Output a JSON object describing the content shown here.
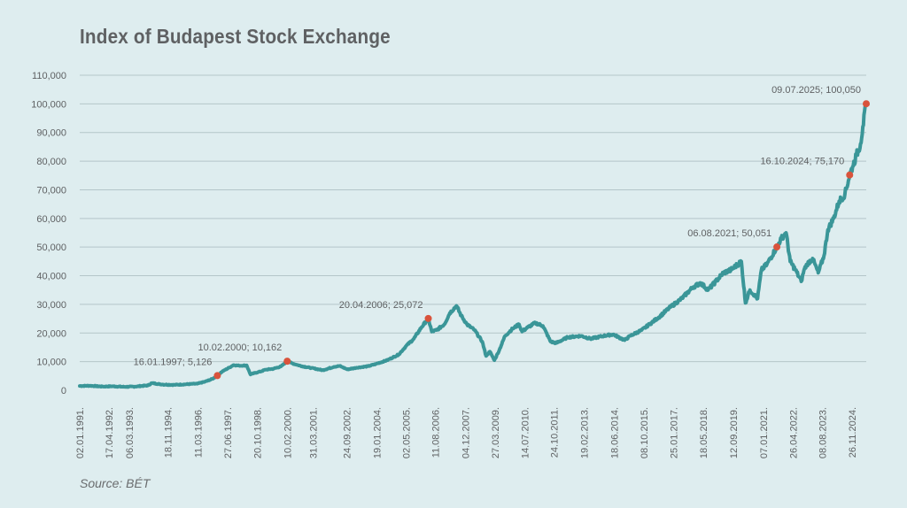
{
  "chart_data": {
    "type": "line",
    "title": "Index of Budapest Stock Exchange",
    "xlabel": "",
    "ylabel": "",
    "source": "Source: BÉT",
    "ylim": [
      0,
      110000
    ],
    "yticks": [
      0,
      10000,
      20000,
      30000,
      40000,
      50000,
      60000,
      70000,
      80000,
      90000,
      100000,
      110000
    ],
    "ytick_labels": [
      "0",
      "10,000",
      "20,000",
      "30,000",
      "40,000",
      "50,000",
      "60,000",
      "70,000",
      "80,000",
      "90,000",
      "100,000",
      "110,000"
    ],
    "xlim": [
      "1991-01-02",
      "2025-07-09"
    ],
    "xtick_dates": [
      "1991-01-02",
      "1992-04-17",
      "1993-03-06",
      "1994-11-18",
      "1996-03-11",
      "1997-06-27",
      "1998-10-20",
      "2000-02-10",
      "2001-03-31",
      "2002-09-24",
      "2004-01-19",
      "2005-05-02",
      "2006-08-11",
      "2007-12-04",
      "2009-03-27",
      "2010-07-14",
      "2011-10-24",
      "2013-02-19",
      "2014-06-18",
      "2015-10-08",
      "2017-01-25",
      "2018-05-18",
      "2019-09-12",
      "2021-01-07",
      "2022-04-26",
      "2023-08-08",
      "2024-11-26"
    ],
    "xtick_labels": [
      "02.01.1991.",
      "17.04.1992.",
      "06.03.1993.",
      "18.11.1994.",
      "11.03.1996.",
      "27.06.1997.",
      "20.10.1998.",
      "10.02.2000.",
      "31.03.2001.",
      "24.09.2002.",
      "19.01.2004.",
      "02.05.2005.",
      "11.08.2006.",
      "04.12.2007.",
      "27.03.2009.",
      "14.07.2010.",
      "24.10.2011.",
      "19.02.2013.",
      "18.06.2014.",
      "08.10.2015.",
      "25.01.2017.",
      "18.05.2018.",
      "12.09.2019.",
      "07.01.2021.",
      "26.04.2022.",
      "08.08.2023.",
      "26.11.2024."
    ],
    "grid": true,
    "series": [
      {
        "name": "",
        "color": "#3a9698",
        "x": [
          "1991-01-02",
          "1991-06-01",
          "1992-01-01",
          "1992-06-01",
          "1993-01-01",
          "1993-06-01",
          "1994-01-01",
          "1994-03-01",
          "1994-09-01",
          "1995-03-01",
          "1995-09-01",
          "1996-03-01",
          "1996-07-01",
          "1996-11-01",
          "1997-01-16",
          "1997-04-01",
          "1997-08-01",
          "1997-10-01",
          "1998-01-01",
          "1998-05-01",
          "1998-07-01",
          "1998-09-01",
          "1998-12-01",
          "1999-03-01",
          "1999-07-01",
          "1999-11-01",
          "2000-02-10",
          "2000-05-01",
          "2000-10-01",
          "2001-03-01",
          "2001-09-01",
          "2002-03-01",
          "2002-06-01",
          "2002-10-01",
          "2003-03-01",
          "2003-09-01",
          "2004-01-01",
          "2004-07-01",
          "2005-01-01",
          "2005-05-01",
          "2005-09-01",
          "2006-01-01",
          "2006-04-20",
          "2006-06-15",
          "2006-09-01",
          "2007-01-01",
          "2007-04-01",
          "2007-07-15",
          "2007-10-01",
          "2008-01-01",
          "2008-05-01",
          "2008-09-01",
          "2008-11-01",
          "2009-01-01",
          "2009-03-15",
          "2009-06-01",
          "2009-09-01",
          "2010-01-01",
          "2010-04-15",
          "2010-06-01",
          "2010-09-01",
          "2011-01-01",
          "2011-05-01",
          "2011-09-01",
          "2011-12-01",
          "2012-06-01",
          "2013-01-01",
          "2013-06-01",
          "2014-01-01",
          "2014-06-01",
          "2014-12-01",
          "2015-03-01",
          "2015-09-01",
          "2016-01-01",
          "2016-06-01",
          "2016-12-01",
          "2017-06-01",
          "2017-12-01",
          "2018-04-01",
          "2018-08-01",
          "2018-12-01",
          "2019-04-01",
          "2019-08-01",
          "2020-01-15",
          "2020-03-20",
          "2020-06-01",
          "2020-10-01",
          "2020-12-01",
          "2021-03-01",
          "2021-08-06",
          "2021-10-15",
          "2022-01-01",
          "2022-03-08",
          "2022-06-01",
          "2022-09-01",
          "2022-10-15",
          "2022-12-01",
          "2023-03-01",
          "2023-06-01",
          "2023-09-01",
          "2023-11-01",
          "2024-02-01",
          "2024-05-01",
          "2024-08-01",
          "2024-10-16",
          "2024-12-01",
          "2025-02-01",
          "2025-04-08",
          "2025-05-15",
          "2025-07-09"
        ],
        "values": [
          1500,
          1600,
          1300,
          1400,
          1200,
          1300,
          1700,
          2500,
          2000,
          1900,
          2100,
          2300,
          3000,
          4000,
          5126,
          6500,
          8000,
          8800,
          8600,
          8700,
          5500,
          6000,
          6500,
          7200,
          7500,
          8300,
          10162,
          9400,
          8400,
          7800,
          7000,
          8200,
          8500,
          7300,
          7900,
          8400,
          9200,
          10500,
          12500,
          15500,
          18000,
          22000,
          25072,
          20500,
          21000,
          23000,
          27000,
          29500,
          26000,
          23000,
          21000,
          17000,
          12000,
          13500,
          10500,
          14000,
          19000,
          21500,
          23000,
          20500,
          22000,
          23500,
          22500,
          17000,
          16500,
          18500,
          19000,
          18000,
          19000,
          19500,
          17500,
          19000,
          21000,
          23000,
          25500,
          29000,
          32000,
          36000,
          37500,
          35000,
          38000,
          41000,
          42000,
          45000,
          30500,
          35000,
          32000,
          42000,
          44000,
          50051,
          53000,
          55000,
          45000,
          42000,
          38000,
          42000,
          44000,
          46000,
          41000,
          47000,
          56000,
          60000,
          66000,
          68500,
          75170,
          78000,
          82000,
          86000,
          92000,
          100050
        ],
        "annotations": [
          {
            "x": "1997-01-16",
            "y": 5126,
            "label": "16.01.1997; 5,126"
          },
          {
            "x": "2000-02-10",
            "y": 10162,
            "label": "10.02.2000; 10,162"
          },
          {
            "x": "2006-04-20",
            "y": 25072,
            "label": "20.04.2006; 25,072"
          },
          {
            "x": "2021-08-06",
            "y": 50051,
            "label": "06.08.2021; 50,051"
          },
          {
            "x": "2024-10-16",
            "y": 75170,
            "label": "16.10.2024; 75,170"
          },
          {
            "x": "2025-07-09",
            "y": 100050,
            "label": "09.07.2025; 100,050"
          }
        ],
        "marker_color": "#d9533c"
      }
    ]
  }
}
